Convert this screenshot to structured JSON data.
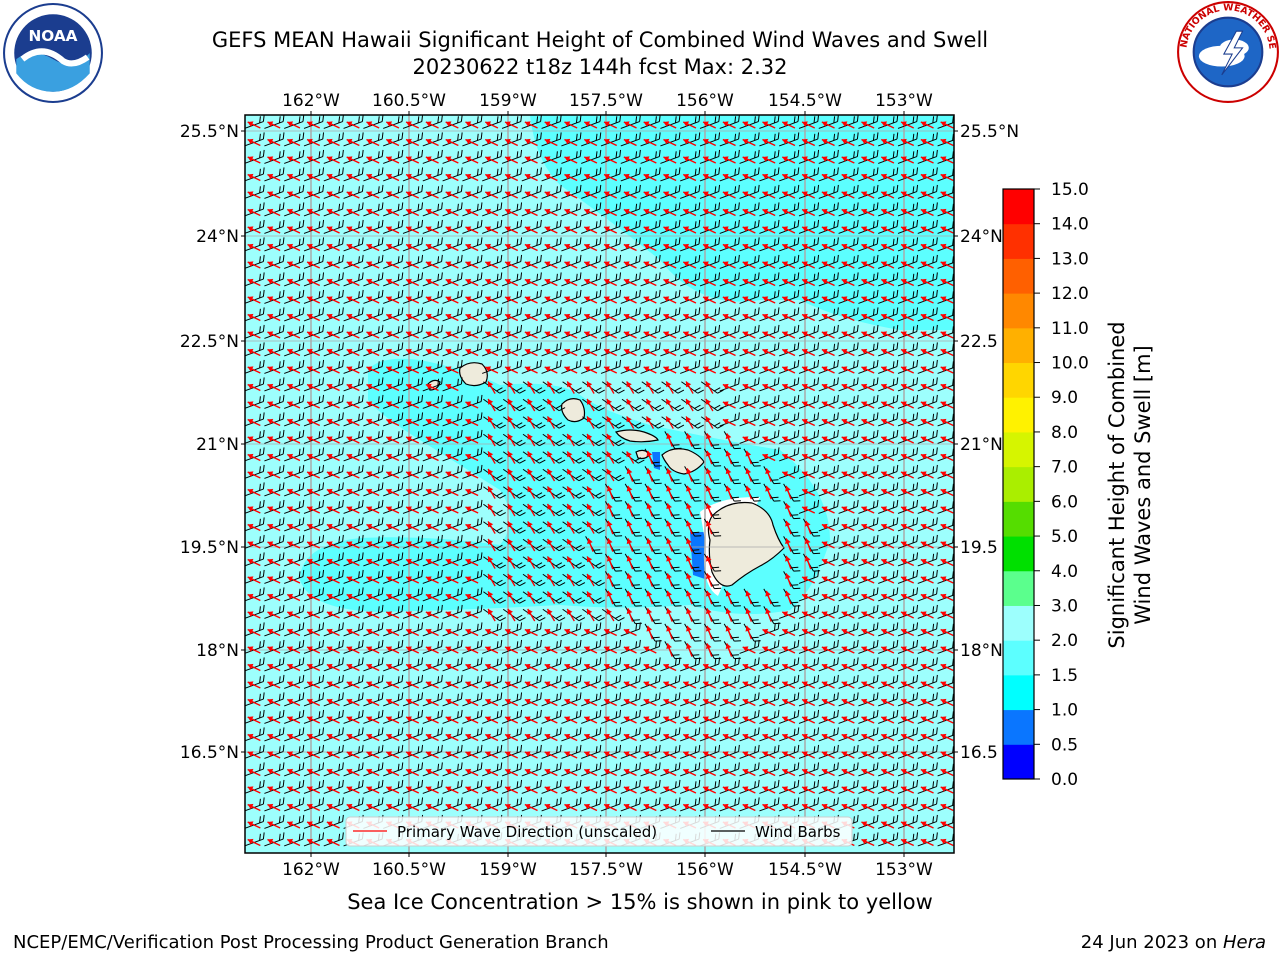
{
  "header": {
    "title_line1": "GEFS MEAN Hawaii Significant Height of Combined Wind Waves and Swell",
    "title_line2": "20230622 t18z 144h fcst   Max: 2.32"
  },
  "map": {
    "lon_ticks": [
      "162°W",
      "160.5°W",
      "159°W",
      "157.5°W",
      "156°W",
      "154.5°W",
      "153°W"
    ],
    "lat_ticks": [
      "25.5°N",
      "24°N",
      "22.5°N",
      "21°N",
      "19.5°N",
      "18°N",
      "16.5°N"
    ],
    "lat_ticks_right": [
      "25.5°N",
      "24°N",
      "22.5",
      "21°N",
      "19.5",
      "18°N",
      "16.5"
    ],
    "legend": {
      "primary_wave_label": "Primary Wave Direction (unscaled)",
      "wind_barbs_label": "Wind Barbs"
    }
  },
  "colorbar": {
    "title_line1": "Significant Height of Combined",
    "title_line2": "Wind Waves and Swell [m]",
    "tick_labels": [
      "0.0",
      "0.5",
      "1.0",
      "1.5",
      "2.0",
      "3.0",
      "4.0",
      "5.0",
      "6.0",
      "7.0",
      "8.0",
      "9.0",
      "10.0",
      "11.0",
      "12.0",
      "13.0",
      "14.0",
      "15.0"
    ],
    "colors": [
      "#0000ff",
      "#0a76ff",
      "#00ffff",
      "#5cffff",
      "#9dfffd",
      "#5bff8d",
      "#00e000",
      "#55dd00",
      "#aaee00",
      "#d6f500",
      "#fff200",
      "#ffd600",
      "#ffb000",
      "#ff8800",
      "#ff6000",
      "#ff3000",
      "#ff0000"
    ]
  },
  "colors": {
    "ocean_light": "#9dfffd",
    "ocean_medium": "#5cffff",
    "ocean_deep": "#0a76ff",
    "land": "#eeebdc",
    "wave_arrow": "#ff0000",
    "wind_barb": "#000000",
    "gridline": "#aaaaaa"
  },
  "icons": {
    "noaa_logo": "noaa-logo",
    "nws_logo": "nws-logo"
  },
  "footer": {
    "subtitle": "Sea Ice Concentration > 15% is shown in pink to yellow",
    "left": "NCEP/EMC/Verification Post Processing Product Generation Branch",
    "right_date": "24 Jun 2023 on ",
    "right_host": "Hera"
  }
}
